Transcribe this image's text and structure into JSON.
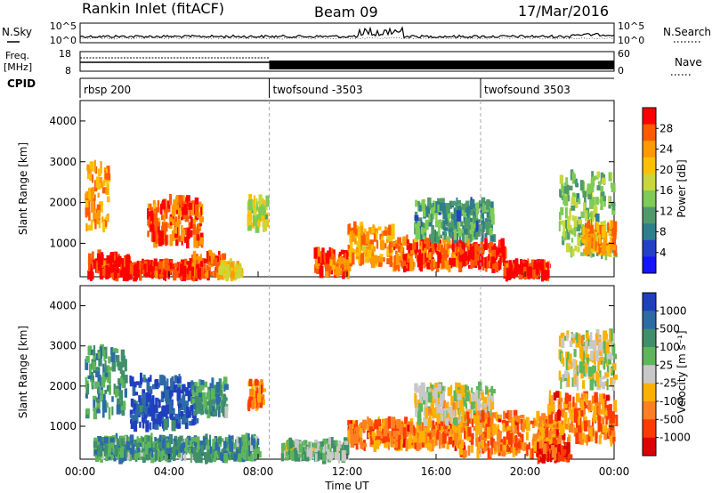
{
  "header": {
    "station": "Rankin Inlet (fitACF)",
    "beam": "Beam 09",
    "date": "17/Mar/2016"
  },
  "strips": {
    "nsky_label": "N.Sky",
    "nsearch_label": "N.Search",
    "noise_ticks": [
      "10^5",
      "10^0"
    ],
    "freq_label_1": "Freq.",
    "freq_label_2": "[MHz]",
    "freq_ticks": [
      "18",
      "8"
    ],
    "nave_label": "Nave",
    "nave_ticks": [
      "60",
      "0"
    ],
    "cpid_label": "CPID",
    "cpid_segments": [
      {
        "name": "rbsp 200",
        "start_h": 0.0
      },
      {
        "name": "twofsound -3503",
        "start_h": 8.5
      },
      {
        "name": "twofsound 3503",
        "start_h": 18.0
      }
    ]
  },
  "chart_data": [
    {
      "type": "heatmap",
      "title": "",
      "quantity": "Power",
      "xlabel": "",
      "ylabel": "Slant Range [km]",
      "xlim": [
        0,
        24
      ],
      "ylim": [
        180,
        4500
      ],
      "yticks": [
        "1000",
        "2000",
        "3000",
        "4000"
      ],
      "colorbar": {
        "label": "Power [dB]",
        "ticks": [
          "28",
          "24",
          "20",
          "16",
          "12",
          "8",
          "4"
        ],
        "colors": [
          "#ff0000",
          "#ff5a00",
          "#ff9a00",
          "#ffc000",
          "#c8d83c",
          "#7fcb55",
          "#4f9a6a",
          "#2e7f8c",
          "#2340c8",
          "#1414ff"
        ]
      },
      "regions": [
        {
          "t0": 0.3,
          "t1": 2.2,
          "r0": 200,
          "r1": 700,
          "c": 0
        },
        {
          "t0": 2.0,
          "t1": 5.5,
          "r0": 200,
          "r1": 500,
          "c": 0
        },
        {
          "t0": 3.0,
          "t1": 5.5,
          "r0": 1000,
          "r1": 2100,
          "c": 1
        },
        {
          "t0": 0.2,
          "t1": 1.2,
          "r0": 1300,
          "r1": 2900,
          "c": 2
        },
        {
          "t0": 5.0,
          "t1": 6.5,
          "r0": 200,
          "r1": 700,
          "c": 1
        },
        {
          "t0": 6.2,
          "t1": 7.2,
          "r0": 200,
          "r1": 500,
          "c": 3
        },
        {
          "t0": 7.5,
          "t1": 8.4,
          "r0": 1400,
          "r1": 2100,
          "c": 4
        },
        {
          "t0": 10.5,
          "t1": 12.0,
          "r0": 250,
          "r1": 800,
          "c": 1
        },
        {
          "t0": 12.0,
          "t1": 14.0,
          "r0": 500,
          "r1": 1400,
          "c": 2
        },
        {
          "t0": 14.0,
          "t1": 17.0,
          "r0": 400,
          "r1": 1100,
          "c": 1
        },
        {
          "t0": 15.0,
          "t1": 18.5,
          "r0": 1100,
          "r1": 2000,
          "c": 6
        },
        {
          "t0": 17.0,
          "t1": 19.0,
          "r0": 400,
          "r1": 1000,
          "c": 0
        },
        {
          "t0": 19.0,
          "t1": 21.0,
          "r0": 200,
          "r1": 500,
          "c": 0
        },
        {
          "t0": 21.5,
          "t1": 24.0,
          "r0": 700,
          "r1": 2700,
          "c": 5
        },
        {
          "t0": 22.5,
          "t1": 24.0,
          "r0": 800,
          "r1": 1500,
          "c": 2
        }
      ]
    },
    {
      "type": "heatmap",
      "title": "",
      "quantity": "Velocity",
      "xlabel": "Time UT",
      "ylabel": "Slant Range [km]",
      "xlim": [
        0,
        24
      ],
      "ylim": [
        180,
        4500
      ],
      "yticks": [
        "1000",
        "2000",
        "3000",
        "4000"
      ],
      "xticks": [
        "00:00",
        "04:00",
        "08:00",
        "12:00",
        "16:00",
        "20:00",
        "00:00"
      ],
      "colorbar": {
        "label": "Velocity [m s⁻¹]",
        "ticks": [
          "1000",
          "500",
          "100",
          "25",
          "-25",
          "-100",
          "-500",
          "-1000"
        ],
        "colors": [
          "#1f3fbf",
          "#2c6ba6",
          "#3f8f6a",
          "#5fb65a",
          "#c8c8c8",
          "#ffb000",
          "#ff8020",
          "#ff3a00",
          "#e00000"
        ]
      },
      "regions": [
        {
          "t0": 2.2,
          "t1": 5.2,
          "r0": 1000,
          "r1": 2200,
          "c": 0
        },
        {
          "t0": 0.2,
          "t1": 2.0,
          "r0": 1300,
          "r1": 2900,
          "c": 2
        },
        {
          "t0": 5.0,
          "t1": 6.5,
          "r0": 1300,
          "r1": 2100,
          "c": 2
        },
        {
          "t0": 0.5,
          "t1": 8.0,
          "r0": 200,
          "r1": 700,
          "c": 2
        },
        {
          "t0": 7.5,
          "t1": 8.2,
          "r0": 1500,
          "r1": 2100,
          "c": 6
        },
        {
          "t0": 9.0,
          "t1": 12.0,
          "r0": 200,
          "r1": 600,
          "c": 3
        },
        {
          "t0": 12.0,
          "t1": 17.0,
          "r0": 500,
          "r1": 1100,
          "c": 6
        },
        {
          "t0": 15.0,
          "t1": 18.5,
          "r0": 1100,
          "r1": 2000,
          "c": 4
        },
        {
          "t0": 17.0,
          "t1": 21.5,
          "r0": 300,
          "r1": 1300,
          "c": 6
        },
        {
          "t0": 21.0,
          "t1": 24.0,
          "r0": 600,
          "r1": 1800,
          "c": 6
        },
        {
          "t0": 21.5,
          "t1": 24.0,
          "r0": 2000,
          "r1": 3300,
          "c": 4
        },
        {
          "t0": 20.5,
          "t1": 22.0,
          "r0": 200,
          "r1": 500,
          "c": 7
        }
      ]
    }
  ]
}
